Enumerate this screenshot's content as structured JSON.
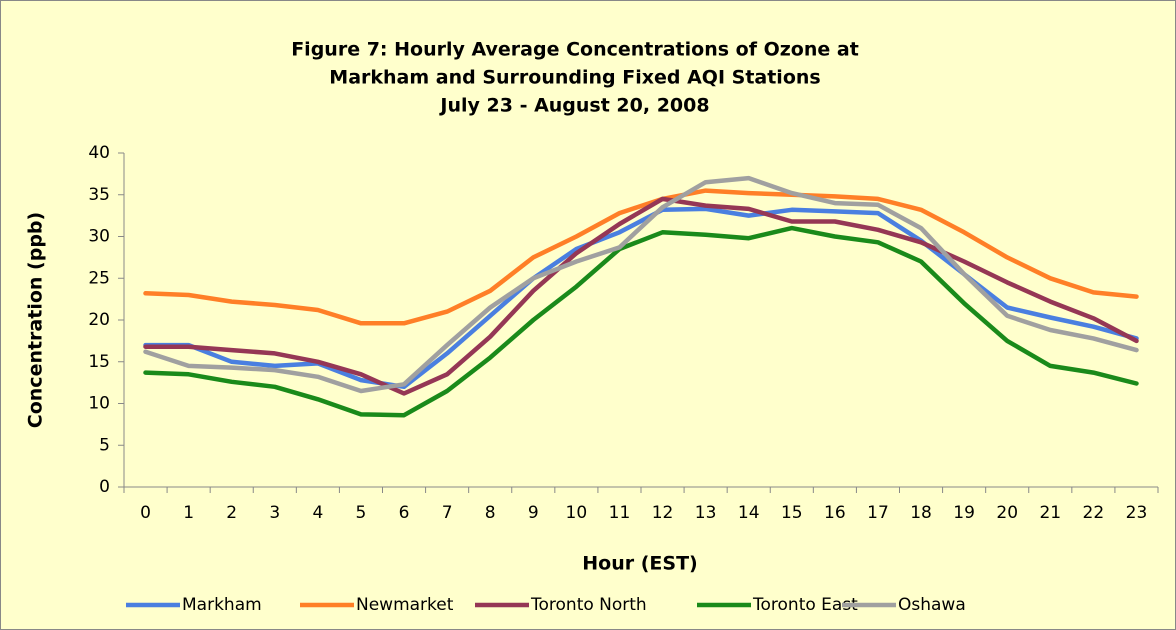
{
  "chart_data": {
    "type": "line",
    "title": [
      "Figure 7:  Hourly Average Concentrations of Ozone at",
      "Markham and Surrounding Fixed AQI Stations",
      "July 23 - August 20, 2008"
    ],
    "x_label": "Hour (EST)",
    "y_label": "Concentration (ppb)",
    "categories": [
      "0",
      "1",
      "2",
      "3",
      "4",
      "5",
      "6",
      "7",
      "8",
      "9",
      "10",
      "11",
      "12",
      "13",
      "14",
      "15",
      "16",
      "17",
      "18",
      "19",
      "20",
      "21",
      "22",
      "23"
    ],
    "ylim": [
      0,
      40
    ],
    "yticks": [
      0,
      5,
      10,
      15,
      20,
      25,
      30,
      35,
      40
    ],
    "grid": false,
    "legend": "bottom",
    "series": [
      {
        "name": "Markham",
        "color": "#4a7fe0",
        "values": [
          17,
          17,
          15,
          14.5,
          14.8,
          12.8,
          12,
          16,
          20.5,
          25,
          28.5,
          30.5,
          33.2,
          33.3,
          32.5,
          33.2,
          33,
          32.8,
          29.5,
          25.5,
          21.5,
          20.3,
          19.2,
          17.8
        ]
      },
      {
        "name": "Newmarket",
        "color": "#ff7f27",
        "values": [
          23.2,
          23,
          22.2,
          21.8,
          21.2,
          19.6,
          19.6,
          21,
          23.5,
          27.5,
          30,
          32.8,
          34.5,
          35.5,
          35.2,
          35,
          34.8,
          34.5,
          33.2,
          30.5,
          27.5,
          25,
          23.3,
          22.8
        ]
      },
      {
        "name": "Toronto North",
        "color": "#953755",
        "values": [
          16.8,
          16.8,
          16.4,
          16,
          15,
          13.5,
          11.2,
          13.5,
          18,
          23.5,
          28,
          31.5,
          34.5,
          33.7,
          33.3,
          31.8,
          31.8,
          30.8,
          29.3,
          27,
          24.5,
          22.2,
          20.2,
          17.5
        ]
      },
      {
        "name": "Toronto East",
        "color": "#1a8a1a",
        "values": [
          13.7,
          13.5,
          12.6,
          12,
          10.5,
          8.7,
          8.6,
          11.5,
          15.5,
          20,
          24,
          28.5,
          30.5,
          30.2,
          29.8,
          31,
          30,
          29.3,
          27,
          22,
          17.5,
          14.5,
          13.7,
          12.4
        ]
      },
      {
        "name": "Oshawa",
        "color": "#a0a0a0",
        "values": [
          16.2,
          14.5,
          14.3,
          14,
          13.2,
          11.5,
          12.3,
          17,
          21.5,
          25,
          27,
          28.7,
          33.5,
          36.5,
          37,
          35.2,
          34,
          33.8,
          31,
          25.5,
          20.5,
          18.8,
          17.8,
          16.4
        ]
      }
    ]
  }
}
